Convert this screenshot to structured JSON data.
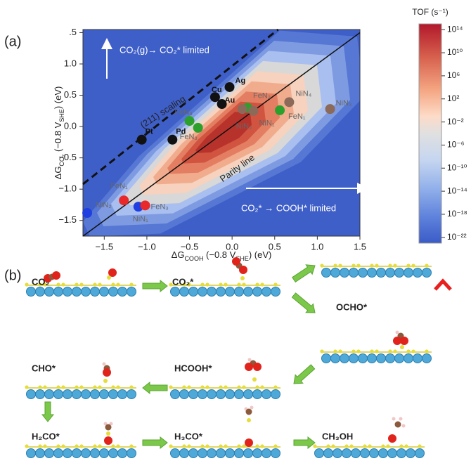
{
  "chart_data": {
    "type": "scatter",
    "panel_label": "(a)",
    "x_label": [
      "ΔG",
      "COOH",
      " (−0.8 V",
      "SHE",
      ") (eV)"
    ],
    "y_label": [
      "ΔG",
      "CO₂",
      " (−0.8 V",
      "SHE",
      ") (eV)"
    ],
    "xlim": [
      -1.75,
      1.5
    ],
    "ylim": [
      -1.75,
      1.55
    ],
    "xticks": [
      {
        "value": -1.5,
        "label": "−1.5"
      },
      {
        "value": -1.0,
        "label": "−1.0"
      },
      {
        "value": -0.5,
        "label": "−0.5"
      },
      {
        "value": 0.0,
        "label": "0.0"
      },
      {
        "value": 0.5,
        "label": "0.5"
      },
      {
        "value": 1.0,
        "label": "1.0"
      },
      1.5
    ],
    "yticks": [
      {
        "value": 1.5,
        "label": ".5"
      },
      {
        "value": 1.0,
        "label": "1.0"
      },
      0.5,
      {
        "value": 0.0,
        "label": "0.0"
      },
      {
        "value": -0.5,
        "label": "−0.5"
      },
      {
        "value": -1.0,
        "label": "−1.0"
      },
      {
        "value": -1.5,
        "label": "−1.5"
      }
    ],
    "series": [
      {
        "color": "#111111",
        "x": [
          -0.2,
          -0.12,
          -0.03,
          -1.06,
          -0.7
        ],
        "values": [
          0.47,
          0.36,
          0.63,
          -0.21,
          -0.21
        ],
        "labels": [
          "Cu",
          "Au",
          "Ag",
          "Pt",
          "Pd"
        ]
      },
      {
        "color": "#2ca02c",
        "x": [
          -0.5,
          -0.4,
          0.18,
          0.56
        ],
        "values": [
          0.09,
          -0.02,
          0.3,
          0.26
        ],
        "labels": [
          "FeN₄",
          "FeN₃",
          "FeN₂",
          "FeN₁"
        ]
      },
      {
        "color": "#8b6a5a",
        "x": [
          0.12,
          0.25,
          0.67,
          1.15
        ],
        "values": [
          0.28,
          0.25,
          0.39,
          0.28
        ],
        "labels": [
          "NiN₂",
          "NiN₁",
          "NiN₄",
          "NiN₃"
        ]
      },
      {
        "color": "#1f3fe0",
        "x": [
          -1.7,
          -1.1
        ],
        "values": [
          -1.38,
          -1.28
        ],
        "labels": [
          "NiN₂",
          "NiN₁"
        ]
      },
      {
        "color": "#e8282a",
        "x": [
          -1.27,
          -1.02
        ],
        "values": [
          -1.18,
          -1.26
        ],
        "labels": [
          "FeN₁",
          "FeN₃"
        ]
      }
    ],
    "lines": [
      {
        "label": "(211) scaling",
        "x": [
          -1.75,
          0.54
        ],
        "values": [
          -0.92,
          1.55
        ],
        "dashed": true
      },
      {
        "label": "Parity line",
        "x": [
          -1.75,
          1.5
        ],
        "values": [
          -1.75,
          1.5
        ],
        "dashed": false
      }
    ],
    "annotations": [
      "CO₂(g)→ CO₂* limited",
      "CO₂* → COOH* limited"
    ],
    "colorbar": {
      "title": "TOF (s⁻¹)",
      "log": true,
      "lim": [
        1e-23,
        1000000000000000.0
      ],
      "ticks": [
        {
          "value": 100000000000000.0,
          "label": "10¹⁴"
        },
        {
          "value": 10000000000.0,
          "label": "10¹⁰"
        },
        {
          "value": 1000000.0,
          "label": "10⁶"
        },
        {
          "value": 100.0,
          "label": "10²"
        },
        {
          "value": 0.01,
          "label": "10⁻²"
        },
        {
          "value": 1e-06,
          "label": "10⁻⁶"
        },
        {
          "value": 1e-10,
          "label": "10⁻¹⁰"
        },
        {
          "value": 1e-14,
          "label": "10⁻¹⁴"
        },
        {
          "value": 1e-18,
          "label": "10⁻¹⁸"
        },
        {
          "value": 1e-22,
          "label": "10⁻²²"
        }
      ]
    }
  },
  "diagram": {
    "label": "(b)",
    "steps": [
      "CO₂",
      "CO₂*",
      "OCHO*",
      "CHO*",
      "HCOOH*",
      "H₂CO*",
      "H₃CO*",
      "CH₃OH"
    ]
  }
}
